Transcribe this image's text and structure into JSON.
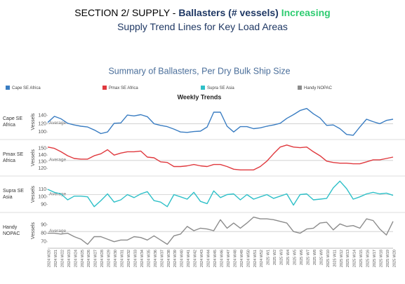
{
  "header": {
    "prefix": "SECTION 2/ SUPPLY - ",
    "highlight": "Ballasters (# vessels)",
    "status": "Increasing",
    "subtitle": "Supply Trend Lines for Key Load Areas"
  },
  "chart_data": {
    "type": "line",
    "title": "Summary of Ballasters, Per Dry Bulk Ship Size",
    "subtitle": "Weekly Trends",
    "ylabel": "Vessels",
    "reference_label": "Average",
    "categories": [
      "2024 W20",
      "2024 W21",
      "2024 W22",
      "2024 W23",
      "2024 W24",
      "2024 W25",
      "2024 W26",
      "2024 W27",
      "2024 W28",
      "2024 W29",
      "2024 W30",
      "2024 W31",
      "2024 W32",
      "2024 W33",
      "2024 W34",
      "2024 W35",
      "2024 W36",
      "2024 W37",
      "2024 W38",
      "2024 W39",
      "2024 W40",
      "2024 W41",
      "2024 W42",
      "2024 W43",
      "2024 W44",
      "2024 W45",
      "2024 W46",
      "2024 W47",
      "2024 W48",
      "2024 W49",
      "2024 W50",
      "2024 W51",
      "2024 W52",
      "2025 W1",
      "2025 W2",
      "2025 W3",
      "2025 W4",
      "2025 W5",
      "2025 W6",
      "2025 W7",
      "2025 W8",
      "2025 W9",
      "2025 W10",
      "2025 W11",
      "2025 W12",
      "2025 W13",
      "2025 W14",
      "2025 W15",
      "2025 W16",
      "2025 W17",
      "2025 W18",
      "2025 W19",
      "2025 W20"
    ],
    "series": [
      {
        "name": "Cape SE Africa",
        "color": "#3a7dc2",
        "ylim": [
          85,
          165
        ],
        "yticks": [
          100,
          120,
          140
        ],
        "average": 120,
        "values": [
          123,
          138,
          132,
          121,
          117,
          114,
          112,
          105,
          96,
          100,
          121,
          122,
          141,
          139,
          142,
          137,
          120,
          116,
          113,
          107,
          100,
          99,
          101,
          102,
          112,
          148,
          148,
          114,
          100,
          113,
          113,
          108,
          110,
          114,
          117,
          121,
          133,
          142,
          152,
          157,
          144,
          134,
          116,
          117,
          108,
          94,
          92,
          112,
          131,
          125,
          120,
          128,
          131
        ]
      },
      {
        "name": "Pmax SE Africa",
        "color": "#e0393e",
        "ylim": [
          112,
          160
        ],
        "yticks": [
          120,
          130,
          140,
          150
        ],
        "average": 132,
        "values": [
          152,
          150,
          145,
          139,
          135,
          134,
          134,
          139,
          142,
          148,
          140,
          143,
          145,
          145,
          146,
          137,
          136,
          130,
          129,
          123,
          123,
          124,
          126,
          124,
          123,
          126,
          126,
          123,
          119,
          118,
          118,
          118,
          123,
          131,
          142,
          152,
          155,
          152,
          151,
          152,
          145,
          139,
          131,
          129,
          128,
          128,
          127,
          127,
          130,
          133,
          133,
          135,
          137
        ]
      },
      {
        "name": "Supra SE Asia",
        "color": "#2fc0c8",
        "ylim": [
          82,
          125
        ],
        "yticks": [
          90,
          100,
          110
        ],
        "average": 103,
        "values": [
          110,
          106,
          104,
          96,
          101,
          101,
          100,
          87,
          95,
          104,
          93,
          96,
          103,
          99,
          104,
          107,
          95,
          93,
          87,
          103,
          100,
          97,
          106,
          94,
          91,
          108,
          99,
          103,
          104,
          96,
          103,
          97,
          100,
          103,
          98,
          101,
          104,
          89,
          103,
          104,
          96,
          97,
          98,
          112,
          121,
          111,
          97,
          100,
          104,
          106,
          104,
          105,
          102
        ]
      },
      {
        "name": "Handy NOPAC",
        "color": "#8c8c8c",
        "ylim": [
          64,
          102
        ],
        "yticks": [
          70,
          80,
          90
        ],
        "average": 82,
        "values": [
          80,
          80,
          79,
          80,
          76,
          73,
          67,
          76,
          76,
          73,
          70,
          72,
          72,
          76,
          75,
          72,
          77,
          72,
          67,
          77,
          79,
          88,
          83,
          86,
          85,
          83,
          96,
          86,
          92,
          86,
          92,
          99,
          97,
          97,
          96,
          94,
          92,
          82,
          80,
          85,
          86,
          92,
          93,
          84,
          91,
          88,
          89,
          86,
          97,
          95,
          85,
          78,
          94
        ]
      }
    ]
  }
}
